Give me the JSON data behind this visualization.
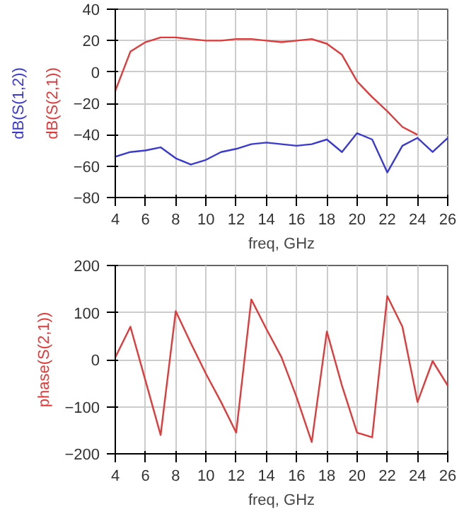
{
  "chart_data": [
    {
      "type": "line",
      "xlabel": "freq, GHz",
      "x": [
        4,
        5,
        6,
        7,
        8,
        9,
        10,
        11,
        12,
        13,
        14,
        15,
        16,
        17,
        18,
        19,
        20,
        21,
        22,
        23,
        24,
        25,
        26
      ],
      "xlim": [
        4,
        26
      ],
      "xticks": [
        4,
        6,
        8,
        10,
        12,
        14,
        16,
        18,
        20,
        22,
        24,
        26
      ],
      "ylim": [
        -80,
        40
      ],
      "yticks": [
        -80,
        -60,
        -40,
        -20,
        0,
        20,
        40
      ],
      "grid": true,
      "marker": "none",
      "line_style": "solid",
      "series": [
        {
          "name": "dB(S(1,2))",
          "color": "#3a3ad0",
          "values": [
            -54,
            -51,
            -50,
            -48,
            -55,
            -59,
            -56,
            -51,
            -49,
            -46,
            -45,
            -46,
            -47,
            -46,
            -43,
            -51,
            -39,
            -43,
            -64,
            -47,
            -42,
            -51,
            -42
          ]
        },
        {
          "name": "dB(S(2,1))",
          "color": "#e03a3a",
          "values": [
            -12,
            13,
            19,
            22,
            22,
            21,
            20,
            20,
            21,
            21,
            20,
            19,
            20,
            21,
            18,
            11,
            -6,
            -16,
            -25,
            -35,
            -40,
            null,
            null
          ]
        }
      ]
    },
    {
      "type": "line",
      "xlabel": "freq, GHz",
      "x": [
        4,
        5,
        6,
        7,
        8,
        9,
        10,
        11,
        12,
        13,
        14,
        15,
        16,
        17,
        18,
        19,
        20,
        21,
        22,
        23,
        24,
        25,
        26
      ],
      "xlim": [
        4,
        26
      ],
      "xticks": [
        4,
        6,
        8,
        10,
        12,
        14,
        16,
        18,
        20,
        22,
        24,
        26
      ],
      "ylim": [
        -200,
        200
      ],
      "yticks": [
        -200,
        -100,
        0,
        100,
        200
      ],
      "grid": true,
      "marker": "none",
      "line_style": "solid",
      "series": [
        {
          "name": "phase(S(2,1))",
          "color": "#e03a3a",
          "values": [
            5,
            70,
            -45,
            -160,
            103,
            35,
            -30,
            -90,
            -155,
            128,
            65,
            5,
            -80,
            -175,
            60,
            -55,
            -155,
            -165,
            135,
            70,
            -90,
            -3,
            -55
          ]
        }
      ]
    }
  ]
}
